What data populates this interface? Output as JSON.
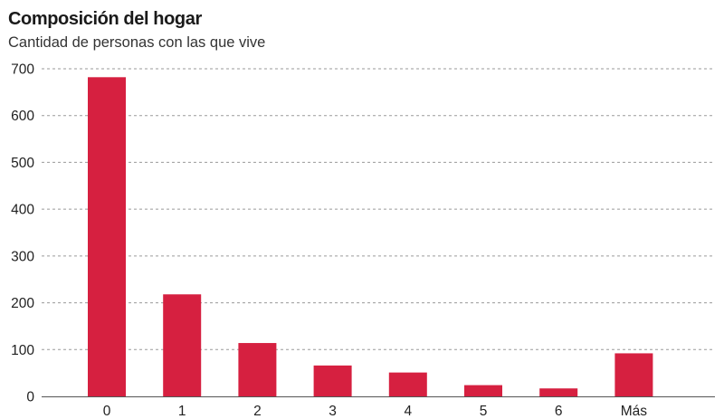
{
  "title": "Composición del hogar",
  "subtitle": "Cantidad de personas con las que vive",
  "chart_data": {
    "type": "bar",
    "title": "Composición del hogar",
    "subtitle": "Cantidad de personas con las que vive",
    "xlabel": "",
    "ylabel": "",
    "categories": [
      "0",
      "1",
      "2",
      "3",
      "4",
      "5",
      "6",
      "Más"
    ],
    "values": [
      682,
      218,
      114,
      66,
      51,
      24,
      17,
      92
    ],
    "ylim": [
      0,
      700
    ],
    "yticks": [
      0,
      100,
      200,
      300,
      400,
      500,
      600,
      700
    ],
    "grid": "horizontal dashed",
    "legend": "none",
    "bar_color": "#d62040",
    "grid_color": "#9a9a9a"
  }
}
